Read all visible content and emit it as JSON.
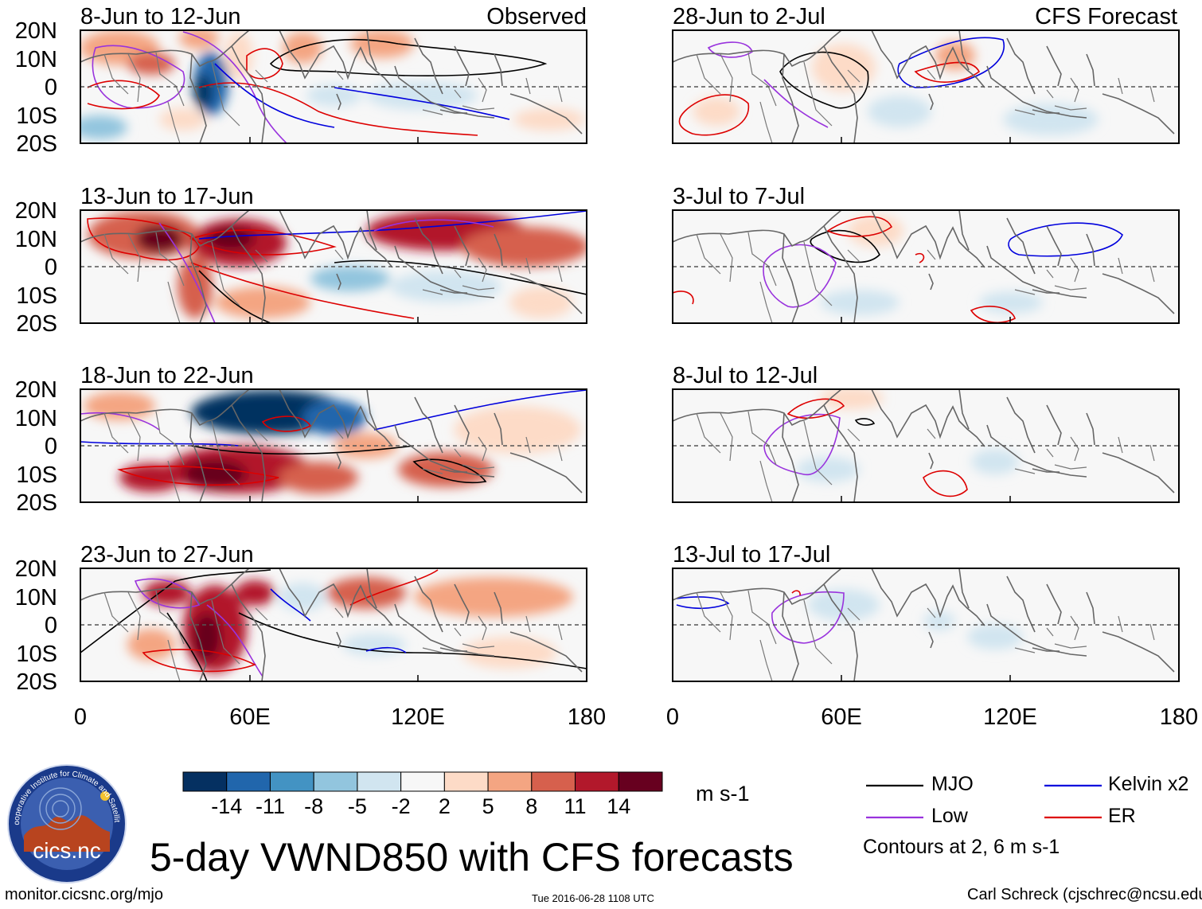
{
  "figure": {
    "title": "5-day VWND850 with CFS forecasts",
    "url": "monitor.cicsnc.org/mjo",
    "timestamp": "Tue 2016-06-28 1108 UTC",
    "author": "Carl Schreck (cjschrec@ncsu.edu)",
    "logo": {
      "text": "cics.nc",
      "ring_text": "Cooperative Institute for Climate and Satellites"
    }
  },
  "axes": {
    "y_labels": [
      "20N",
      "10N",
      "0",
      "10S",
      "20S"
    ],
    "x_labels": [
      "0",
      "60E",
      "120E",
      "180"
    ]
  },
  "observed_panels": [
    {
      "title": "8-Jun to 12-Jun",
      "tag": "Observed"
    },
    {
      "title": "13-Jun to 17-Jun"
    },
    {
      "title": "18-Jun to 22-Jun"
    },
    {
      "title": "23-Jun to 27-Jun"
    }
  ],
  "forecast_panels": [
    {
      "title": "28-Jun to 2-Jul",
      "tag": "CFS Forecast"
    },
    {
      "title": "3-Jul to 7-Jul"
    },
    {
      "title": "8-Jul to 12-Jul"
    },
    {
      "title": "13-Jul to 17-Jul"
    }
  ],
  "colorbar": {
    "labels": [
      "-14",
      "-11",
      "-8",
      "-5",
      "-2",
      "2",
      "5",
      "8",
      "11",
      "14"
    ],
    "colors": [
      "#053061",
      "#2166ac",
      "#4393c3",
      "#92c5de",
      "#d1e5f0",
      "#f7f7f7",
      "#fddbc7",
      "#f4a582",
      "#d6604d",
      "#b2182b",
      "#67001f"
    ],
    "units": "m s-1"
  },
  "legend": {
    "items": [
      {
        "label": "MJO",
        "color": "#000000"
      },
      {
        "label": "Kelvin x2",
        "color": "#0000dd"
      },
      {
        "label": "Low",
        "color": "#9933dd"
      },
      {
        "label": "ER",
        "color": "#dd0000"
      }
    ],
    "contour_note": "Contours at 2, 6 m s-1"
  }
}
